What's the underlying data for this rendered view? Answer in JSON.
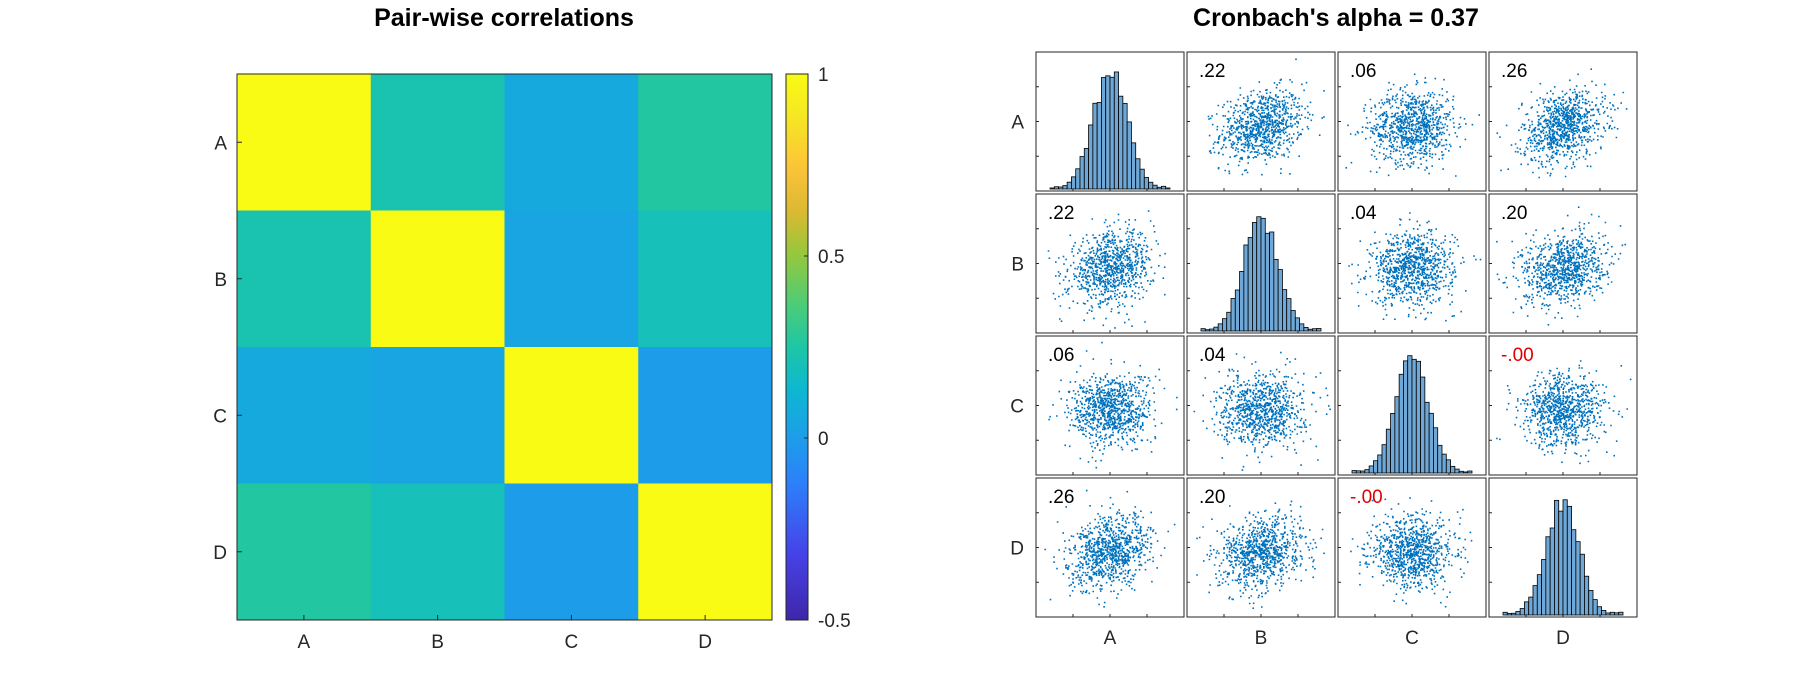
{
  "chart_data": [
    {
      "type": "heatmap",
      "title": "Pair-wise correlations",
      "x_labels": [
        "A",
        "B",
        "C",
        "D"
      ],
      "y_labels": [
        "A",
        "B",
        "C",
        "D"
      ],
      "values": [
        [
          1.0,
          0.22,
          0.06,
          0.26
        ],
        [
          0.22,
          1.0,
          0.04,
          0.2
        ],
        [
          0.06,
          0.04,
          1.0,
          -0.0
        ],
        [
          0.26,
          0.2,
          -0.0,
          1.0
        ]
      ],
      "colorbar": {
        "range": [
          -0.5,
          1
        ],
        "ticks": [
          -0.5,
          0,
          0.5,
          1
        ],
        "tick_labels": [
          "-0.5",
          "0",
          "0.5",
          "1"
        ],
        "colormap": "parula"
      }
    },
    {
      "type": "scatter",
      "subtype": "scatter-matrix",
      "title": "Cronbach's alpha = 0.37",
      "variables": [
        "A",
        "B",
        "C",
        "D"
      ],
      "diagonal": "histogram",
      "point_color": "#0072bd",
      "negative_label_color": "#e00000",
      "pair_correlations": [
        {
          "row": "A",
          "col": "B",
          "label": ".22"
        },
        {
          "row": "A",
          "col": "C",
          "label": ".06"
        },
        {
          "row": "A",
          "col": "D",
          "label": ".26"
        },
        {
          "row": "B",
          "col": "A",
          "label": ".22"
        },
        {
          "row": "B",
          "col": "C",
          "label": ".04"
        },
        {
          "row": "B",
          "col": "D",
          "label": ".20"
        },
        {
          "row": "C",
          "col": "A",
          "label": ".06"
        },
        {
          "row": "C",
          "col": "B",
          "label": ".04"
        },
        {
          "row": "C",
          "col": "D",
          "label": "-.00"
        },
        {
          "row": "D",
          "col": "A",
          "label": ".26"
        },
        {
          "row": "D",
          "col": "B",
          "label": ".20"
        },
        {
          "row": "D",
          "col": "C",
          "label": "-.00"
        }
      ]
    }
  ]
}
